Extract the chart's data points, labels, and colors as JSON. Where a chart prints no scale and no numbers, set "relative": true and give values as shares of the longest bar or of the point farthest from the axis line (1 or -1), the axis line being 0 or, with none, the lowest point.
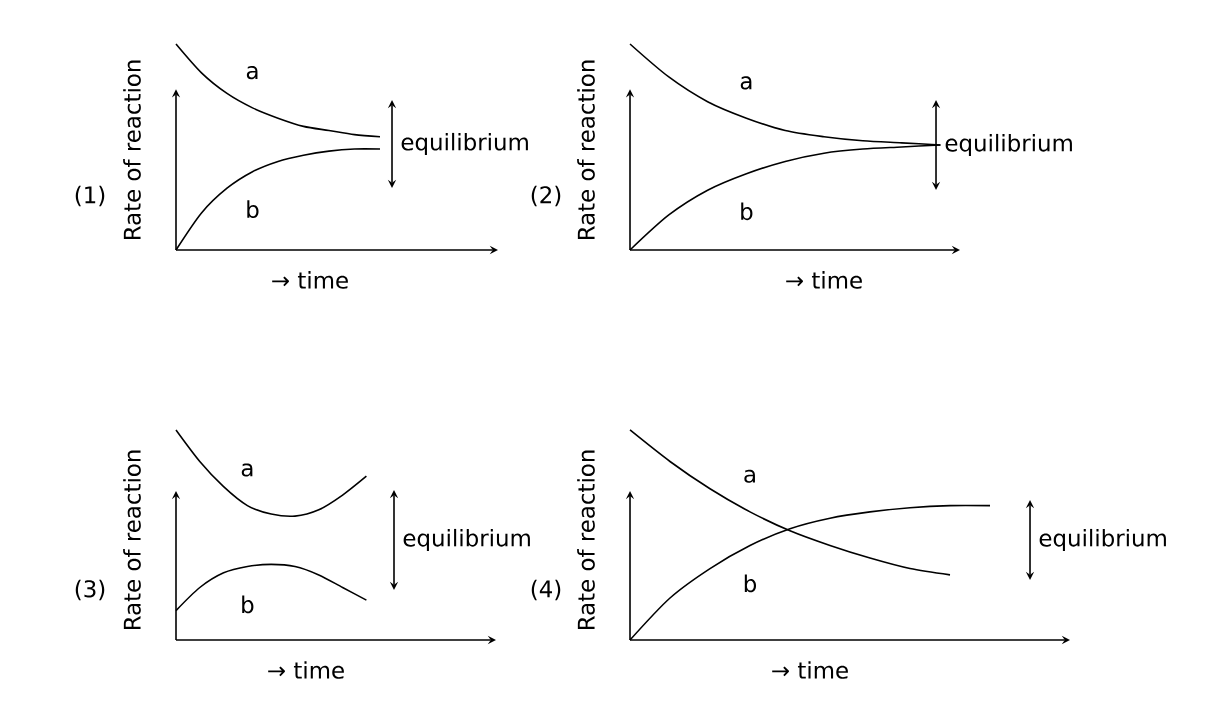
{
  "chart_data": [
    {
      "type": "line",
      "relative": true,
      "xlabel": "→ time",
      "ylabel": "Rate of reaction",
      "categories": [
        null,
        null,
        null,
        null,
        null,
        null,
        null,
        null,
        null
      ],
      "series": [
        {
          "name": "a",
          "color": "#000000",
          "values": [
            1,
            0.86,
            0.76,
            0.69,
            0.64,
            0.6,
            0.58,
            0.56,
            0.55
          ]
        },
        {
          "name": "b",
          "color": "#000000",
          "values": [
            0,
            0.18,
            0.3,
            0.38,
            0.43,
            0.46,
            0.48,
            0.49,
            0.49
          ]
        }
      ],
      "annotations": [
        "(1)",
        "equilibrium"
      ]
    },
    {
      "type": "line",
      "relative": true,
      "xlabel": "→ time",
      "ylabel": "Rate of reaction",
      "categories": [
        null,
        null,
        null,
        null,
        null,
        null,
        null,
        null,
        null
      ],
      "series": [
        {
          "name": "a",
          "color": "#000000",
          "values": [
            1,
            0.84,
            0.72,
            0.64,
            0.58,
            0.55,
            0.53,
            0.52,
            0.51
          ]
        },
        {
          "name": "b",
          "color": "#000000",
          "values": [
            0,
            0.17,
            0.29,
            0.37,
            0.43,
            0.47,
            0.49,
            0.5,
            0.51
          ]
        }
      ],
      "annotations": [
        "(2)",
        "equilibrium"
      ]
    },
    {
      "type": "line",
      "relative": true,
      "xlabel": "→ time",
      "ylabel": "Rate of reaction",
      "categories": [
        null,
        null,
        null,
        null,
        null,
        null,
        null,
        null,
        null
      ],
      "series": [
        {
          "name": "a",
          "color": "#000000",
          "values": [
            1,
            0.85,
            0.73,
            0.64,
            0.6,
            0.59,
            0.62,
            0.69,
            0.78
          ]
        },
        {
          "name": "b",
          "color": "#000000",
          "values": [
            0.14,
            0.25,
            0.32,
            0.35,
            0.36,
            0.35,
            0.31,
            0.25,
            0.19
          ]
        }
      ],
      "annotations": [
        "(3)",
        "equilibrium"
      ]
    },
    {
      "type": "line",
      "relative": true,
      "xlabel": "→ time",
      "ylabel": "Rate of reaction",
      "categories": [
        null,
        null,
        null,
        null,
        null,
        null,
        null,
        null,
        null,
        null
      ],
      "series": [
        {
          "name": "a",
          "color": "#000000",
          "values": [
            1,
            0.85,
            0.72,
            0.61,
            0.52,
            0.45,
            0.39,
            0.34,
            0.31,
            null
          ]
        },
        {
          "name": "b",
          "color": "#000000",
          "values": [
            0,
            0.2,
            0.34,
            0.45,
            0.53,
            0.58,
            0.61,
            0.63,
            0.64,
            0.64
          ]
        }
      ],
      "annotations": [
        "(4)",
        "equilibrium"
      ]
    }
  ]
}
